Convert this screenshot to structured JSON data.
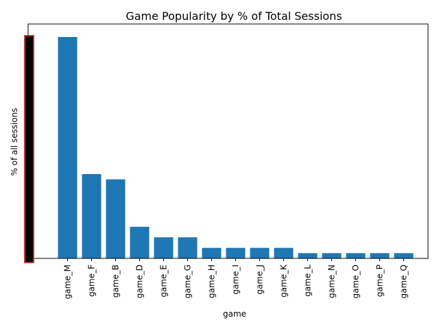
{
  "chart_data": {
    "type": "bar",
    "title": "Game Popularity by % of Total Sessions",
    "xlabel": "game",
    "ylabel": "% of all sessions",
    "categories": [
      "game_M",
      "game_F",
      "game_B",
      "game_D",
      "game_E",
      "game_G",
      "game_H",
      "game_I",
      "game_J",
      "game_K",
      "game_L",
      "game_N",
      "game_O",
      "game_P",
      "game_Q"
    ],
    "values": [
      42,
      16,
      15,
      6,
      4,
      4,
      2,
      2,
      2,
      2,
      1,
      1,
      1,
      1,
      1
    ],
    "ylim": [
      0,
      42
    ],
    "grid": false,
    "legend": "none",
    "bar_color": "#1f77b4",
    "y_axis_overlay": {
      "fill": "#000000",
      "border": "#c0392b"
    }
  }
}
